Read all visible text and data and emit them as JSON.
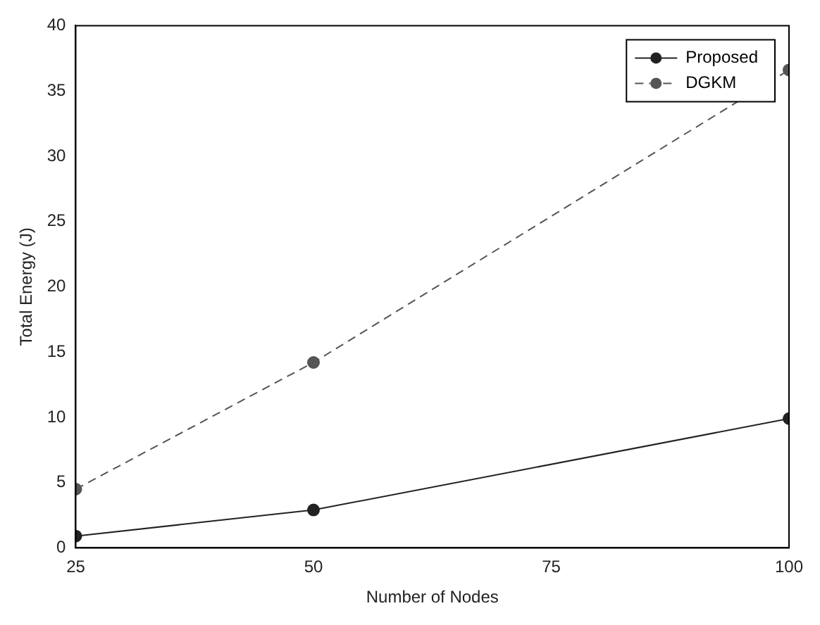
{
  "chart_data": {
    "type": "line",
    "xlabel": "Number of Nodes",
    "ylabel": "Total Energy (J)",
    "x": [
      25,
      50,
      100
    ],
    "series": [
      {
        "name": "Proposed",
        "color": "#222222",
        "values": [
          0.9,
          2.9,
          9.9
        ],
        "line_style": "solid"
      },
      {
        "name": "DGKM",
        "color": "#555555",
        "values": [
          4.5,
          14.2,
          36.6
        ],
        "line_style": "dashed"
      }
    ],
    "xlim": [
      25,
      100
    ],
    "xticks": [
      25,
      50,
      75,
      100
    ],
    "ylim": [
      0,
      40
    ],
    "yticks": [
      0,
      5,
      10,
      15,
      20,
      25,
      30,
      35,
      40
    ],
    "grid": false,
    "legend": "top right",
    "marker": "circle"
  }
}
